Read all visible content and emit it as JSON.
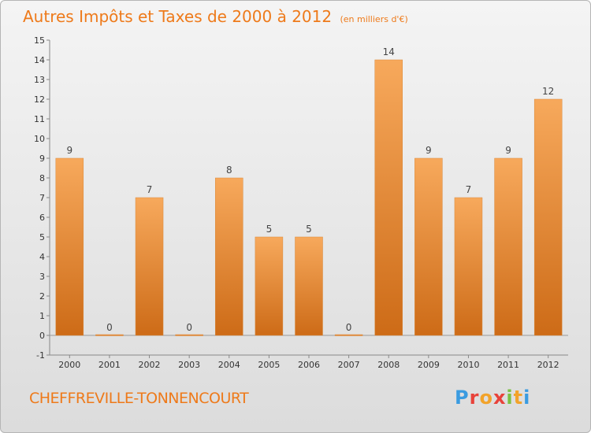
{
  "header": {
    "title": "Autres Impôts et Taxes de 2000 à 2012",
    "unit": "(en milliers d'€)"
  },
  "footer": {
    "commune": "CHEFFREVILLE-TONNENCOURT",
    "logo_letters": [
      "P",
      "r",
      "o",
      "x",
      "i",
      "t",
      "i"
    ]
  },
  "colors": {
    "bar_top": "#f7a95c",
    "bar_bottom": "#cd6b17",
    "accent": "#ee7a1a"
  },
  "chart_data": {
    "type": "bar",
    "title": "Autres Impôts et Taxes de 2000 à 2012",
    "categories": [
      "2000",
      "2001",
      "2002",
      "2003",
      "2004",
      "2005",
      "2006",
      "2007",
      "2008",
      "2009",
      "2010",
      "2011",
      "2012"
    ],
    "values": [
      9,
      0,
      7,
      0,
      8,
      5,
      5,
      0,
      14,
      9,
      7,
      9,
      12
    ],
    "ylim": [
      -1,
      15
    ],
    "yticks": [
      -1,
      0,
      1,
      2,
      3,
      4,
      5,
      6,
      7,
      8,
      9,
      10,
      11,
      12,
      13,
      14,
      15
    ],
    "xlabel": "",
    "ylabel": "",
    "grid": false,
    "legend": "none"
  }
}
